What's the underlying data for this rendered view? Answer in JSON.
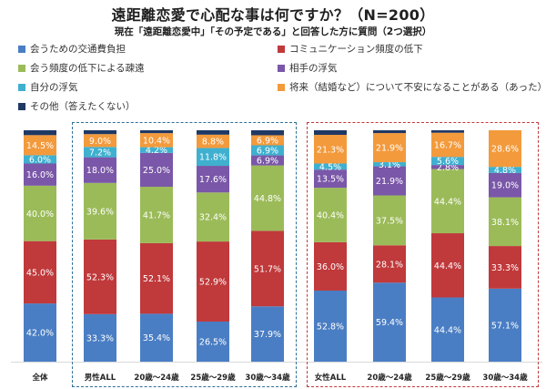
{
  "title": "遠距離恋愛で心配な事は何ですか？（N=200）",
  "subtitle": "現在「遠距離恋愛中」「その予定である」と回答した方に質問（2つ選択）",
  "chart_data": {
    "type": "bar",
    "stacked": true,
    "stack_mode": "percent",
    "categories": [
      "全体",
      "男性ALL",
      "20歳～24歳",
      "25歳～29歳",
      "30歳～34歳",
      "女性ALL",
      "20歳～24歳",
      "25歳～29歳",
      "30歳～34歳"
    ],
    "series": [
      {
        "name": "会うための交通費負担",
        "color": "#4a7ec4",
        "values": [
          42.0,
          33.3,
          35.4,
          26.5,
          37.9,
          52.8,
          59.4,
          44.4,
          57.1
        ],
        "labels": [
          "42.0%",
          "33.3%",
          "35.4%",
          "26.5%",
          "37.9%",
          "52.8%",
          "59.4%",
          "44.4%",
          "57.1%"
        ]
      },
      {
        "name": "コミュニケーション頻度の低下",
        "color": "#c0393b",
        "values": [
          45.0,
          52.3,
          52.1,
          52.9,
          51.7,
          36.0,
          28.1,
          44.4,
          33.3
        ],
        "labels": [
          "45.0%",
          "52.3%",
          "52.1%",
          "52.9%",
          "51.7%",
          "36.0%",
          "28.1%",
          "44.4%",
          "33.3%"
        ]
      },
      {
        "name": "会う頻度の低下による疎遠",
        "color": "#9bbb59",
        "values": [
          40.0,
          39.6,
          41.7,
          32.4,
          44.8,
          40.4,
          37.5,
          44.4,
          38.1
        ],
        "labels": [
          "40.0%",
          "39.6%",
          "41.7%",
          "32.4%",
          "44.8%",
          "40.4%",
          "37.5%",
          "44.4%",
          "38.1%"
        ]
      },
      {
        "name": "相手の浮気",
        "color": "#7a57a8",
        "values": [
          16.0,
          18.0,
          25.0,
          17.6,
          6.9,
          13.5,
          21.9,
          2.8,
          19.0
        ],
        "labels": [
          "16.0%",
          "18.0%",
          "25.0%",
          "17.6%",
          "6.9%",
          "13.5%",
          "21.9%",
          "2.8%",
          "19.0%"
        ]
      },
      {
        "name": "自分の浮気",
        "color": "#3fb0cf",
        "values": [
          6.0,
          7.2,
          4.2,
          11.8,
          6.9,
          4.5,
          3.1,
          5.6,
          4.8
        ],
        "labels": [
          "6.0%",
          "7.2%",
          "4.2%",
          "11.8%",
          "6.9%",
          "4.5%",
          "3.1%",
          "5.6%",
          "4.8%"
        ]
      },
      {
        "name": "将来（結婚など）について不安になることがある（あった）",
        "color": "#f39a3c",
        "values": [
          14.5,
          9.0,
          10.4,
          8.8,
          6.9,
          21.3,
          21.9,
          16.7,
          28.6
        ],
        "labels": [
          "14.5%",
          "9.0%",
          "10.4%",
          "8.8%",
          "6.9%",
          "21.3%",
          "21.9%",
          "16.7%",
          "28.6%"
        ]
      },
      {
        "name": "その他（答えたくない）",
        "color": "#1f3864",
        "values": [
          3.5,
          2.7,
          2.1,
          2.9,
          3.4,
          3.4,
          2.1,
          1.7,
          0.0
        ],
        "labels": [
          "",
          "",
          "",
          "",
          "",
          "",
          "",
          "",
          ""
        ]
      }
    ],
    "legend_position": "top",
    "grid": false
  }
}
